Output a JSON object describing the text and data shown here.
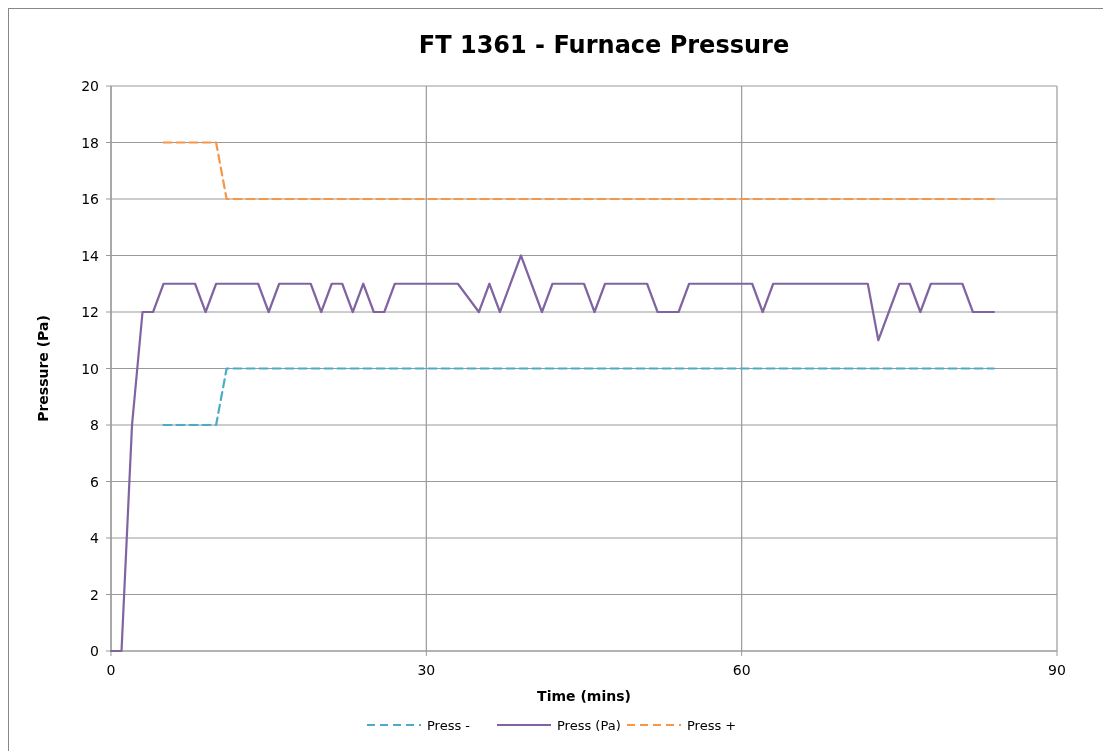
{
  "chart_data": {
    "type": "line",
    "title": "FT 1361 - Furnace Pressure",
    "xlabel": "Time (mins)",
    "ylabel": "Pressure (Pa)",
    "xlim": [
      0,
      90
    ],
    "xticks": [
      0,
      30,
      60,
      90
    ],
    "ylim": [
      0,
      20
    ],
    "yticks": [
      0,
      2,
      4,
      6,
      8,
      10,
      12,
      14,
      16,
      18,
      20
    ],
    "grid": true,
    "legend": "bottom",
    "marker": "none",
    "series": [
      {
        "name": "Press -",
        "color": "#4bacc6",
        "line_style": "dashed",
        "x": [
          5,
          10,
          11,
          84
        ],
        "values": [
          8,
          8,
          10,
          10
        ]
      },
      {
        "name": "Press (Pa)",
        "color": "#8064a2",
        "line_style": "solid",
        "x": [
          0,
          1,
          2,
          3,
          4,
          5,
          8,
          9,
          10,
          14,
          15,
          16,
          19,
          20,
          21,
          22,
          23,
          24,
          25,
          26,
          27,
          33,
          35,
          36,
          37,
          39,
          41,
          42,
          45,
          46,
          47,
          51,
          52,
          54,
          55,
          61,
          62,
          63,
          72,
          73,
          75,
          76,
          77,
          78,
          81,
          82,
          84
        ],
        "values": [
          0,
          0,
          8,
          12,
          12,
          13,
          13,
          12,
          13,
          13,
          12,
          13,
          13,
          12,
          13,
          13,
          12,
          13,
          12,
          12,
          13,
          13,
          12,
          13,
          12,
          14,
          12,
          13,
          13,
          12,
          13,
          13,
          12,
          12,
          13,
          13,
          12,
          13,
          13,
          11,
          13,
          13,
          12,
          13,
          13,
          12,
          12
        ]
      },
      {
        "name": "Press +",
        "color": "#f79646",
        "line_style": "dashed",
        "x": [
          5,
          10,
          11,
          84
        ],
        "values": [
          18,
          18,
          16,
          16
        ]
      }
    ]
  }
}
